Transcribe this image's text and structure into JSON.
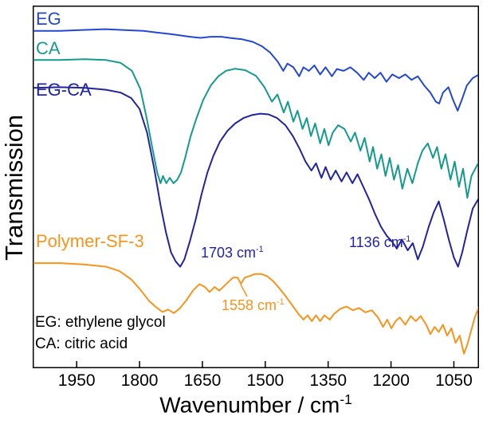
{
  "figure": {
    "background": "#ffffff",
    "border_color": "#000000"
  },
  "axes": {
    "ylabel": "Transmission",
    "xlabel_base": "Wavenumber / cm",
    "xlabel_sup": "-1"
  },
  "annotations": {
    "a1703": {
      "base": "1703 cm",
      "sup": "-1"
    },
    "a1136": {
      "base": "1136 cm",
      "sup": "-1"
    },
    "a1558": {
      "base": "1558 cm",
      "sup": "-1"
    }
  },
  "notes": {
    "line1": "EG: ethylene glycol",
    "line2": "CA: citric acid"
  },
  "chart_data": {
    "type": "line",
    "title": "",
    "x_axis": {
      "label": "Wavenumber / cm⁻¹",
      "range": [
        2055,
        990
      ],
      "reversed": true,
      "ticks": [
        1950,
        1800,
        1650,
        1500,
        1350,
        1200,
        1050
      ]
    },
    "y_axis": {
      "label": "Transmission",
      "tick_labels": false,
      "scale_note": "arbitrary units; curves vertically offset; values 0-100 (100 = top of plot)"
    },
    "series": [
      {
        "id": "eg",
        "name": "EG",
        "color": "#2447d2",
        "points": [
          [
            2055,
            93
          ],
          [
            1990,
            93
          ],
          [
            1930,
            93.3
          ],
          [
            1880,
            93.5
          ],
          [
            1830,
            93.2
          ],
          [
            1790,
            93
          ],
          [
            1760,
            92.6
          ],
          [
            1730,
            92.2
          ],
          [
            1705,
            91.8
          ],
          [
            1680,
            91.4
          ],
          [
            1655,
            91.1
          ],
          [
            1630,
            91.4
          ],
          [
            1605,
            91.4
          ],
          [
            1580,
            91
          ],
          [
            1555,
            90.7
          ],
          [
            1530,
            90
          ],
          [
            1508,
            88.8
          ],
          [
            1488,
            87
          ],
          [
            1470,
            84.5
          ],
          [
            1457,
            82
          ],
          [
            1447,
            84
          ],
          [
            1433,
            83
          ],
          [
            1419,
            80.5
          ],
          [
            1409,
            83
          ],
          [
            1396,
            82
          ],
          [
            1383,
            83.5
          ],
          [
            1369,
            81
          ],
          [
            1356,
            83
          ],
          [
            1341,
            80.5
          ],
          [
            1329,
            82.5
          ],
          [
            1313,
            82
          ],
          [
            1297,
            83
          ],
          [
            1281,
            81.5
          ],
          [
            1265,
            79.5
          ],
          [
            1253,
            81.5
          ],
          [
            1239,
            80
          ],
          [
            1225,
            81.5
          ],
          [
            1211,
            79
          ],
          [
            1197,
            81
          ],
          [
            1181,
            80
          ],
          [
            1166,
            81
          ],
          [
            1151,
            79.5
          ],
          [
            1136,
            80.5
          ],
          [
            1121,
            78
          ],
          [
            1106,
            76
          ],
          [
            1093,
            73.5
          ],
          [
            1085,
            73
          ],
          [
            1076,
            76
          ],
          [
            1063,
            77.5
          ],
          [
            1052,
            74
          ],
          [
            1041,
            71
          ],
          [
            1031,
            74
          ],
          [
            1019,
            78
          ],
          [
            1005,
            80
          ],
          [
            990,
            81
          ]
        ]
      },
      {
        "id": "ca",
        "name": "CA",
        "color": "#169a8d",
        "points": [
          [
            2055,
            85
          ],
          [
            1990,
            85
          ],
          [
            1930,
            85.2
          ],
          [
            1880,
            85
          ],
          [
            1845,
            84.2
          ],
          [
            1818,
            82
          ],
          [
            1798,
            77
          ],
          [
            1783,
            69
          ],
          [
            1770,
            61
          ],
          [
            1758,
            54
          ],
          [
            1750,
            51
          ],
          [
            1744,
            53
          ],
          [
            1736,
            51
          ],
          [
            1728,
            52.5
          ],
          [
            1719,
            51
          ],
          [
            1710,
            52
          ],
          [
            1701,
            54
          ],
          [
            1690,
            58.5
          ],
          [
            1678,
            64
          ],
          [
            1664,
            69
          ],
          [
            1648,
            74
          ],
          [
            1630,
            78
          ],
          [
            1612,
            80.5
          ],
          [
            1594,
            82
          ],
          [
            1572,
            82.6
          ],
          [
            1548,
            82.2
          ],
          [
            1522,
            80.6
          ],
          [
            1502,
            77.5
          ],
          [
            1484,
            73.5
          ],
          [
            1471,
            75.5
          ],
          [
            1456,
            70.5
          ],
          [
            1446,
            73.5
          ],
          [
            1433,
            68
          ],
          [
            1423,
            71
          ],
          [
            1411,
            66
          ],
          [
            1401,
            69
          ],
          [
            1391,
            64
          ],
          [
            1381,
            67.5
          ],
          [
            1369,
            62
          ],
          [
            1359,
            66
          ],
          [
            1349,
            61.5
          ],
          [
            1339,
            65
          ],
          [
            1326,
            67
          ],
          [
            1311,
            66
          ],
          [
            1296,
            62.5
          ],
          [
            1286,
            65
          ],
          [
            1273,
            60
          ],
          [
            1263,
            63.5
          ],
          [
            1251,
            57
          ],
          [
            1243,
            61
          ],
          [
            1233,
            55
          ],
          [
            1223,
            59
          ],
          [
            1213,
            53
          ],
          [
            1203,
            58
          ],
          [
            1193,
            52
          ],
          [
            1183,
            56
          ],
          [
            1173,
            49.5
          ],
          [
            1161,
            55
          ],
          [
            1149,
            51
          ],
          [
            1136,
            56.5
          ],
          [
            1125,
            60
          ],
          [
            1112,
            62
          ],
          [
            1100,
            58
          ],
          [
            1090,
            61
          ],
          [
            1080,
            55
          ],
          [
            1070,
            59
          ],
          [
            1058,
            52
          ],
          [
            1048,
            57
          ],
          [
            1038,
            50
          ],
          [
            1028,
            55
          ],
          [
            1018,
            47
          ],
          [
            1008,
            53
          ],
          [
            990,
            57
          ]
        ]
      },
      {
        "id": "eg_ca",
        "name": "EG-CA",
        "color": "#22249f",
        "points": [
          [
            2055,
            77.3
          ],
          [
            1990,
            77.5
          ],
          [
            1930,
            77.3
          ],
          [
            1880,
            76.8
          ],
          [
            1845,
            76
          ],
          [
            1820,
            74.5
          ],
          [
            1800,
            71.5
          ],
          [
            1782,
            65
          ],
          [
            1765,
            55
          ],
          [
            1750,
            45
          ],
          [
            1737,
            37.5
          ],
          [
            1725,
            32
          ],
          [
            1714,
            29.5
          ],
          [
            1703,
            28
          ],
          [
            1693,
            30
          ],
          [
            1680,
            35
          ],
          [
            1666,
            41
          ],
          [
            1652,
            48
          ],
          [
            1638,
            54
          ],
          [
            1624,
            58.5
          ],
          [
            1608,
            62.5
          ],
          [
            1590,
            65.5
          ],
          [
            1572,
            67.5
          ],
          [
            1552,
            69
          ],
          [
            1532,
            69.8
          ],
          [
            1512,
            70.2
          ],
          [
            1492,
            70
          ],
          [
            1472,
            69
          ],
          [
            1452,
            67
          ],
          [
            1434,
            64
          ],
          [
            1418,
            60.5
          ],
          [
            1404,
            57
          ],
          [
            1390,
            54.5
          ],
          [
            1379,
            56.5
          ],
          [
            1366,
            52.5
          ],
          [
            1356,
            55.5
          ],
          [
            1344,
            52
          ],
          [
            1332,
            54.5
          ],
          [
            1318,
            51.5
          ],
          [
            1306,
            54
          ],
          [
            1292,
            51
          ],
          [
            1280,
            53.5
          ],
          [
            1266,
            50
          ],
          [
            1252,
            46.5
          ],
          [
            1238,
            42.5
          ],
          [
            1224,
            39
          ],
          [
            1210,
            36.5
          ],
          [
            1198,
            35
          ],
          [
            1186,
            33
          ],
          [
            1174,
            35.5
          ],
          [
            1160,
            32.5
          ],
          [
            1148,
            34.5
          ],
          [
            1136,
            30
          ],
          [
            1124,
            33.5
          ],
          [
            1110,
            39
          ],
          [
            1098,
            43
          ],
          [
            1086,
            46
          ],
          [
            1074,
            41
          ],
          [
            1062,
            35.5
          ],
          [
            1050,
            30.5
          ],
          [
            1040,
            28
          ],
          [
            1030,
            32
          ],
          [
            1018,
            38
          ],
          [
            1005,
            44
          ],
          [
            990,
            47
          ]
        ]
      },
      {
        "id": "polymer_sf3",
        "name": "Polymer-SF-3",
        "color": "#f7941e",
        "points": [
          [
            2055,
            29
          ],
          [
            1990,
            29
          ],
          [
            1930,
            28.6
          ],
          [
            1880,
            28
          ],
          [
            1848,
            26.8
          ],
          [
            1820,
            24.5
          ],
          [
            1797,
            21.5
          ],
          [
            1777,
            18.5
          ],
          [
            1760,
            16.8
          ],
          [
            1745,
            15.5
          ],
          [
            1732,
            16.2
          ],
          [
            1718,
            15.2
          ],
          [
            1704,
            16.5
          ],
          [
            1688,
            18.8
          ],
          [
            1672,
            21.5
          ],
          [
            1657,
            23.2
          ],
          [
            1644,
            22.4
          ],
          [
            1633,
            21
          ],
          [
            1621,
            22.4
          ],
          [
            1610,
            21.4
          ],
          [
            1599,
            22.6
          ],
          [
            1588,
            23.8
          ],
          [
            1577,
            25
          ],
          [
            1566,
            25
          ],
          [
            1558,
            23.3
          ],
          [
            1549,
            25
          ],
          [
            1538,
            25.4
          ],
          [
            1524,
            26
          ],
          [
            1510,
            26
          ],
          [
            1496,
            25.4
          ],
          [
            1481,
            24
          ],
          [
            1466,
            22
          ],
          [
            1451,
            19.8
          ],
          [
            1436,
            17.4
          ],
          [
            1421,
            15
          ],
          [
            1409,
            13.4
          ],
          [
            1399,
            14.6
          ],
          [
            1389,
            13
          ],
          [
            1379,
            14.6
          ],
          [
            1369,
            13
          ],
          [
            1359,
            14.6
          ],
          [
            1346,
            13.4
          ],
          [
            1336,
            15
          ],
          [
            1321,
            16.4
          ],
          [
            1306,
            17
          ],
          [
            1291,
            16
          ],
          [
            1276,
            16.6
          ],
          [
            1261,
            15.4
          ],
          [
            1246,
            16
          ],
          [
            1231,
            14
          ],
          [
            1219,
            11.4
          ],
          [
            1209,
            13.4
          ],
          [
            1199,
            11
          ],
          [
            1189,
            13
          ],
          [
            1179,
            14
          ],
          [
            1166,
            12
          ],
          [
            1153,
            14.4
          ],
          [
            1141,
            13
          ],
          [
            1129,
            14.4
          ],
          [
            1116,
            12
          ],
          [
            1106,
            9.4
          ],
          [
            1096,
            11.4
          ],
          [
            1086,
            10
          ],
          [
            1076,
            12
          ],
          [
            1066,
            9
          ],
          [
            1056,
            11
          ],
          [
            1046,
            7
          ],
          [
            1036,
            9
          ],
          [
            1026,
            4
          ],
          [
            1018,
            6.5
          ],
          [
            1012,
            9
          ],
          [
            1000,
            14
          ],
          [
            990,
            17
          ]
        ]
      }
    ]
  }
}
